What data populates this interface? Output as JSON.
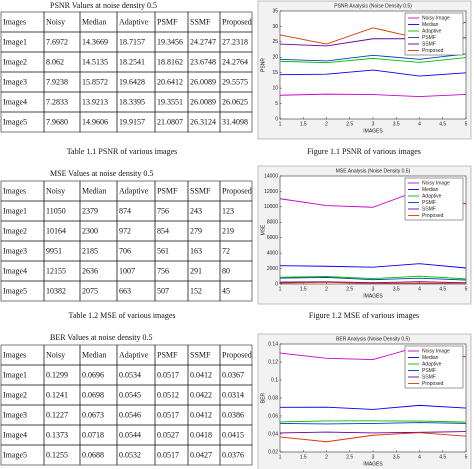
{
  "tables": [
    {
      "title": "PSNR  Values at noise density 0.5",
      "caption": "Table 1.1 PSNR of various images",
      "header": [
        "Images",
        "Noisy",
        "Median",
        "Adaptive",
        "PSMF",
        "SSMF",
        "Proposed"
      ],
      "rows": [
        [
          "Image1",
          "7.6972",
          "14.3669",
          "18.7157",
          "19.3456",
          "24.2747",
          "27.2318"
        ],
        [
          "Image2",
          "8.062",
          "14.5135",
          "18.2541",
          "18.8162",
          "23.6748",
          "24.2764"
        ],
        [
          "Image3",
          "7.9238",
          "15.8572",
          "19.6428",
          "20.6412",
          "26.0089",
          "29.5575"
        ],
        [
          "Image4",
          "7.2833",
          "13.9213",
          "18.3395",
          "19.3551",
          "26.0089",
          "26.0625"
        ],
        [
          "Image5",
          "7.9680",
          "14.9606",
          "19.9157",
          "21.0807",
          "26.3124",
          "31.4098"
        ]
      ]
    },
    {
      "title": "MSE Values at noise density 0.5",
      "caption": "Table 1.2  MSE of various images",
      "header": [
        "Images",
        "Noisy",
        "Median",
        "Adaptive",
        "PSMF",
        "SSMF",
        "Proposed"
      ],
      "rows": [
        [
          "Image1",
          "11050",
          "2379",
          "874",
          "756",
          "243",
          "123"
        ],
        [
          "Image2",
          "10164",
          "2300",
          "972",
          "854",
          "279",
          "219"
        ],
        [
          "Image3",
          "9951",
          "2185",
          "706",
          "561",
          "163",
          "72"
        ],
        [
          "Image4",
          "12155",
          "2636",
          "1007",
          "756",
          "291",
          "80"
        ],
        [
          "Image5",
          "10382",
          "2075",
          "663",
          "507",
          "152",
          "45"
        ]
      ]
    },
    {
      "title": "BER Values at noise density 0.5",
      "header": [
        "Images",
        "Noisy",
        "Median",
        "Adaptive",
        "PSMF",
        "SSMF",
        "Proposed"
      ],
      "rows": [
        [
          "Image1",
          "0.1299",
          "0.0696",
          "0.0534",
          "0.0517",
          "0.0412",
          "0.0367"
        ],
        [
          "Image2",
          "0.1241",
          "0.0698",
          "0.0545",
          "0.0512",
          "0.0422",
          "0.0314"
        ],
        [
          "Image3",
          "0.1227",
          "0.0673",
          "0.0546",
          "0.0517",
          "0.0412",
          "0.0386"
        ],
        [
          "Image4",
          "0.1373",
          "0.0718",
          "0.0544",
          "0.0527",
          "0.0418",
          "0.0415"
        ],
        [
          "Image5",
          "0.1255",
          "0.0688",
          "0.0532",
          "0.0517",
          "0.0427",
          "0.0376"
        ]
      ]
    }
  ],
  "chart_data": [
    {
      "type": "line",
      "title": "PSNR Analysis (Noise Density 0.5)",
      "caption": "Figure 1.1 PSNR of various images",
      "x_label": "IMAGES",
      "y_label": "PSNR",
      "x": [
        1,
        2,
        3,
        4,
        5
      ],
      "xlim": [
        1,
        5
      ],
      "xticks": [
        1,
        1.5,
        2,
        2.5,
        3,
        3.5,
        4,
        4.5,
        5
      ],
      "ylim": [
        0,
        35
      ],
      "yticks": [
        0,
        5,
        10,
        15,
        20,
        25,
        30,
        35
      ],
      "legend": "upper right",
      "series": [
        {
          "name": "Noisy Image",
          "color": "#cc00cc",
          "values": [
            7.6972,
            8.062,
            7.9238,
            7.2833,
            7.968
          ]
        },
        {
          "name": "Median",
          "color": "#0000ff",
          "values": [
            14.3669,
            14.5135,
            15.8572,
            13.9213,
            14.9606
          ]
        },
        {
          "name": "Adaptive",
          "color": "#00bb00",
          "values": [
            18.7157,
            18.2541,
            19.6428,
            18.3395,
            19.9157
          ]
        },
        {
          "name": "PSMF",
          "color": "#0044aa",
          "values": [
            19.3456,
            18.8162,
            20.6412,
            19.3551,
            21.0807
          ]
        },
        {
          "name": "SSMF",
          "color": "#660099",
          "values": [
            24.2747,
            23.6748,
            26.0089,
            26.0089,
            26.3124
          ]
        },
        {
          "name": "Proposed",
          "color": "#dd3300",
          "values": [
            27.2318,
            24.2764,
            29.5575,
            26.0625,
            31.4098
          ]
        }
      ]
    },
    {
      "type": "line",
      "title": "MSE Analysis (Noise Density 0.5)",
      "caption": "Figure 1.2 MSE of various images",
      "x_label": "IMAGES",
      "y_label": "MSE",
      "x": [
        1,
        2,
        3,
        4,
        5
      ],
      "xlim": [
        1,
        5
      ],
      "xticks": [
        1,
        1.5,
        2,
        2.5,
        3,
        3.5,
        4,
        4.5,
        5
      ],
      "ylim": [
        0,
        14000
      ],
      "yticks": [
        0,
        2000,
        4000,
        6000,
        8000,
        10000,
        12000,
        14000
      ],
      "legend": "upper right",
      "series": [
        {
          "name": "Noisy Image",
          "color": "#cc00cc",
          "values": [
            11050,
            10164,
            9951,
            12155,
            10382
          ]
        },
        {
          "name": "Median",
          "color": "#0000ff",
          "values": [
            2379,
            2300,
            2185,
            2636,
            2075
          ]
        },
        {
          "name": "Adaptive",
          "color": "#00bb00",
          "values": [
            874,
            972,
            706,
            1007,
            663
          ]
        },
        {
          "name": "PSMF",
          "color": "#0044aa",
          "values": [
            756,
            854,
            561,
            756,
            507
          ]
        },
        {
          "name": "SSMF",
          "color": "#660099",
          "values": [
            243,
            279,
            163,
            291,
            152
          ]
        },
        {
          "name": "Proposed",
          "color": "#dd3300",
          "values": [
            123,
            219,
            72,
            80,
            45
          ]
        }
      ]
    },
    {
      "type": "line",
      "title": "BER Analysis (Noise Density 0.5)",
      "x_label": "IMAGES",
      "y_label": "BER",
      "x": [
        1,
        2,
        3,
        4,
        5
      ],
      "xlim": [
        1,
        5
      ],
      "xticks": [
        1,
        1.5,
        2,
        2.5,
        3,
        3.5,
        4,
        4.5,
        5
      ],
      "ylim": [
        0.02,
        0.14
      ],
      "yticks": [
        0.02,
        0.04,
        0.06,
        0.08,
        0.1,
        0.12,
        0.14
      ],
      "legend": "upper right",
      "series": [
        {
          "name": "Noisy Image",
          "color": "#cc00cc",
          "values": [
            0.1299,
            0.1241,
            0.1227,
            0.1373,
            0.1255
          ]
        },
        {
          "name": "Median",
          "color": "#0000ff",
          "values": [
            0.0696,
            0.0698,
            0.0673,
            0.0718,
            0.0688
          ]
        },
        {
          "name": "Adaptive",
          "color": "#00bb00",
          "values": [
            0.0534,
            0.0545,
            0.0546,
            0.0544,
            0.0532
          ]
        },
        {
          "name": "PSMF",
          "color": "#0044aa",
          "values": [
            0.0517,
            0.0512,
            0.0517,
            0.0527,
            0.0517
          ]
        },
        {
          "name": "SSMF",
          "color": "#660099",
          "values": [
            0.0412,
            0.0422,
            0.0412,
            0.0418,
            0.0427
          ]
        },
        {
          "name": "Proposed",
          "color": "#dd3300",
          "values": [
            0.0367,
            0.0314,
            0.0386,
            0.0415,
            0.0376
          ]
        }
      ]
    }
  ]
}
